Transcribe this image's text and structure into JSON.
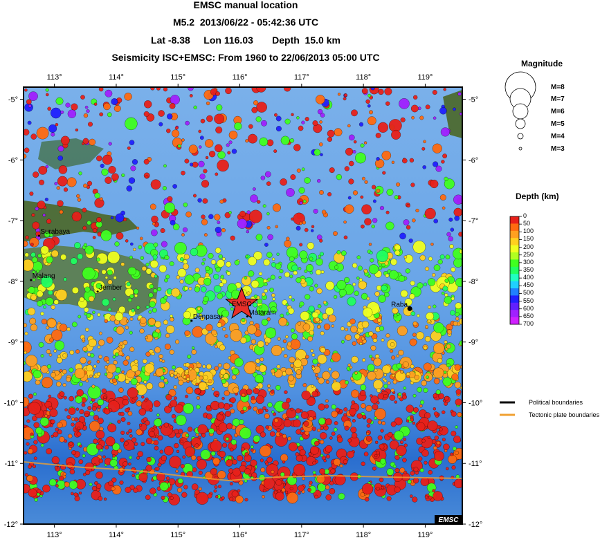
{
  "header": {
    "line1": "EMSC manual location",
    "line2": "M5.2  2013/06/22 - 05:42:36 UTC",
    "line3": "Lat -8.38     Lon 116.03       Depth  15.0 km",
    "line4": "Seismicity ISC+EMSC: From 1960 to 22/06/2013 05:00 UTC"
  },
  "map": {
    "lon_range": [
      112.5,
      119.6
    ],
    "lat_range": [
      -12,
      -4.8
    ],
    "lon_ticks": [
      "113°",
      "114°",
      "115°",
      "116°",
      "117°",
      "118°",
      "119°"
    ],
    "lat_ticks": [
      "-5°",
      "-6°",
      "-7°",
      "-8°",
      "-9°",
      "-10°",
      "-11°",
      "-12°"
    ],
    "event": {
      "lat": -8.38,
      "lon": 116.03,
      "label": "EMSC",
      "color": "#e8302a"
    },
    "cities": [
      {
        "name": "Surabaya",
        "lat": -7.25,
        "lon": 112.75
      },
      {
        "name": "Malang",
        "lat": -7.98,
        "lon": 112.62
      },
      {
        "name": "Jember",
        "lat": -8.17,
        "lon": 113.7
      },
      {
        "name": "Denpasar",
        "lat": -8.65,
        "lon": 115.22
      },
      {
        "name": "Mataram",
        "lat": -8.58,
        "lon": 116.12
      },
      {
        "name": "Raba",
        "lat": -8.45,
        "lon": 118.75
      }
    ],
    "credit": "EMSC"
  },
  "legend": {
    "magnitude_title": "Magnitude",
    "magnitudes": [
      "M=8",
      "M=7",
      "M=6",
      "M=5",
      "M=4",
      "M=3"
    ],
    "depth_title": "Depth (km)",
    "depth_ticks": [
      "0",
      "50",
      "100",
      "150",
      "200",
      "250",
      "300",
      "350",
      "400",
      "450",
      "500",
      "550",
      "600",
      "650",
      "700"
    ],
    "depth_colors": [
      "#e8201a",
      "#ff6a10",
      "#ffa020",
      "#ffd020",
      "#f0ff20",
      "#b0ff20",
      "#40ff20",
      "#20ff60",
      "#20ffc0",
      "#20d0ff",
      "#2080ff",
      "#2020ff",
      "#6020ff",
      "#a020ff",
      "#d020ff"
    ],
    "boundaries": [
      {
        "label": "Political boundaries",
        "color": "#000000"
      },
      {
        "label": "Tectonic plate boundaries",
        "color": "#f0a030"
      }
    ]
  }
}
